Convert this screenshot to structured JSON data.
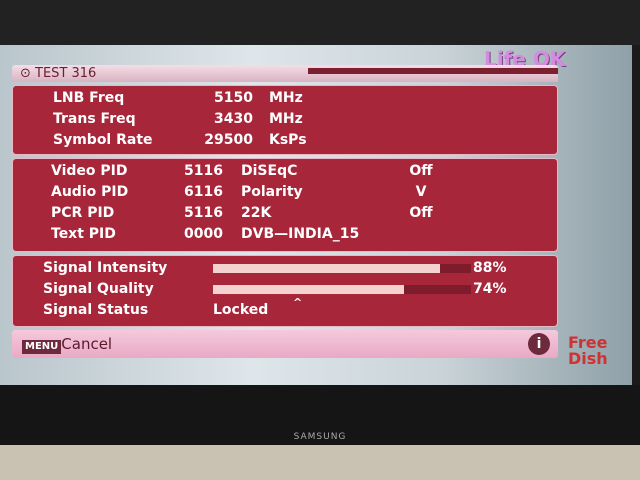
{
  "channel_logo": "Life OK",
  "tv_brand": "SAMSUNG",
  "watermark": "Free Dish",
  "header": {
    "title": "TEST 316"
  },
  "tuning": [
    {
      "label": "LNB Freq",
      "value": "5150",
      "unit": "MHz"
    },
    {
      "label": "Trans Freq",
      "value": "3430",
      "unit": "MHz"
    },
    {
      "label": "Symbol Rate",
      "value": "29500",
      "unit": "KsPs"
    }
  ],
  "pids": [
    {
      "label": "Video PID",
      "value": "5116",
      "opt": "DiSEqC",
      "opt_value": "Off"
    },
    {
      "label": "Audio PID",
      "value": "6116",
      "opt": "Polarity",
      "opt_value": "V"
    },
    {
      "label": "PCR PID",
      "value": "5116",
      "opt": "22K",
      "opt_value": "Off"
    },
    {
      "label": "Text PID",
      "value": "0000",
      "opt": "DVB—INDIA_15",
      "opt_value": ""
    }
  ],
  "signal": {
    "intensity_label": "Signal Intensity",
    "intensity": 88,
    "intensity_text": "88%",
    "quality_label": "Signal Quality",
    "quality": 74,
    "quality_text": "74%",
    "status_label": "Signal Status",
    "status": "Locked"
  },
  "footer": {
    "menu_key": "MENU",
    "cancel": "Cancel",
    "info": "i"
  },
  "colors": {
    "panel": "#a8263a",
    "footer": "#e9a9c5",
    "bar_fill": "#f3d2cf"
  }
}
